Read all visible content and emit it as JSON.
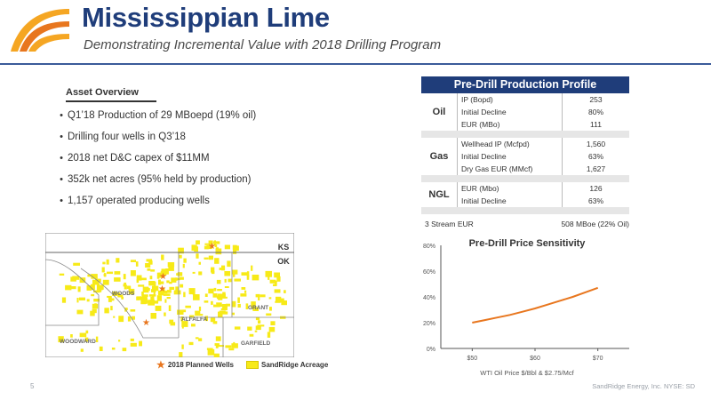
{
  "header": {
    "title": "Mississippian Lime",
    "subtitle": "Demonstrating Incremental Value with 2018 Drilling Program"
  },
  "asset_overview": {
    "heading": "Asset Overview",
    "bullets": [
      "Q1’18 Production of 29 MBoepd (19% oil)",
      "Drilling four wells in Q3’18",
      "2018 net D&C capex of $11MM",
      "352k net acres (95% held by production)",
      "1,157 operated producing wells"
    ]
  },
  "production_profile": {
    "title": "Pre-Drill Production Profile",
    "groups": [
      {
        "name": "Oil",
        "rows": [
          {
            "label": "IP (Bopd)",
            "value": "253"
          },
          {
            "label": "Initial Decline",
            "value": "80%"
          },
          {
            "label": "EUR (MBo)",
            "value": "111"
          }
        ]
      },
      {
        "name": "Gas",
        "rows": [
          {
            "label": "Wellhead IP (Mcfpd)",
            "value": "1,560"
          },
          {
            "label": "Initial Decline",
            "value": "63%"
          },
          {
            "label": "Dry Gas EUR (MMcf)",
            "value": "1,627"
          }
        ]
      },
      {
        "name": "NGL",
        "rows": [
          {
            "label": "EUR (Mbo)",
            "value": "126"
          },
          {
            "label": "Initial Decline",
            "value": "63%"
          }
        ]
      }
    ],
    "total_label": "3 Stream EUR",
    "total_value": "508 MBoe (22% Oil)"
  },
  "map": {
    "states": [
      "KS",
      "OK"
    ],
    "counties": [
      "WOODS",
      "GRANT",
      "ALFALFA",
      "WOODWARD",
      "GARFIELD"
    ],
    "legend_wells": "2018 Planned Wells",
    "legend_acreage": "SandRidge Acreage",
    "colors": {
      "acreage": "#f7ea18",
      "well": "#e8761e",
      "border": "#8a8a8a"
    }
  },
  "chart_data": {
    "type": "line",
    "title": "Pre-Drill Price Sensitivity",
    "xlabel": "WTI Oil Price $/Bbl & $2.75/Mcf",
    "ylabel": "",
    "categories": [
      "$50",
      "$60",
      "$70"
    ],
    "x": [
      50,
      52,
      54,
      56,
      58,
      60,
      62,
      64,
      66,
      68,
      70
    ],
    "series": [
      {
        "values": [
          20,
          22,
          24,
          26,
          28.5,
          31,
          34,
          37,
          40,
          43.5,
          47
        ]
      }
    ],
    "y_ticks": [
      "0%",
      "20%",
      "40%",
      "60%",
      "80%"
    ],
    "ylim": [
      0,
      80
    ],
    "xlim": [
      45,
      75
    ],
    "grid": false,
    "line_color": "#e8761e"
  },
  "footer": {
    "page": "5",
    "company": "SandRidge Energy, Inc. NYSE: SD"
  }
}
